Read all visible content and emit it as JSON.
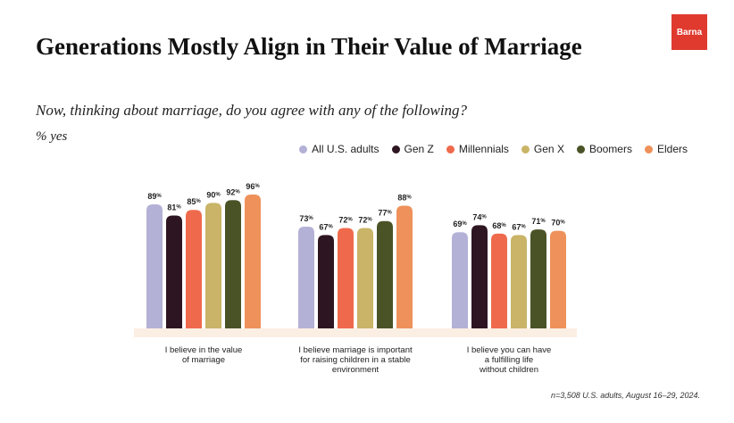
{
  "logo_text": "Barna",
  "chart_data": {
    "type": "bar",
    "title": "Generations Mostly Align in Their Value of Marriage",
    "subtitle": "Now, thinking about marriage, do you agree with any of the following?",
    "unit_label": "% yes",
    "source": "n=3,508 U.S. adults, August 16–29, 2024.",
    "value_suffix": "%",
    "ylim": [
      0,
      100
    ],
    "grid": false,
    "legend_position": "top-right",
    "categories": [
      [
        "I believe in the value",
        "of marriage"
      ],
      [
        "I believe marriage is important",
        "for raising children in a stable",
        "environment"
      ],
      [
        "I believe you can  have",
        "a fulfilling life",
        "without children"
      ]
    ],
    "series": [
      {
        "name": "All U.S. adults",
        "color": "#b3b1d6",
        "values": [
          89,
          73,
          69
        ]
      },
      {
        "name": "Gen Z",
        "color": "#2e1522",
        "values": [
          81,
          67,
          74
        ]
      },
      {
        "name": "Millennials",
        "color": "#ef6a4c",
        "values": [
          85,
          72,
          68
        ]
      },
      {
        "name": "Gen X",
        "color": "#c9b467",
        "values": [
          90,
          72,
          67
        ]
      },
      {
        "name": "Boomers",
        "color": "#4a5326",
        "values": [
          92,
          77,
          71
        ]
      },
      {
        "name": "Elders",
        "color": "#ee915a",
        "values": [
          96,
          88,
          70
        ]
      }
    ]
  }
}
